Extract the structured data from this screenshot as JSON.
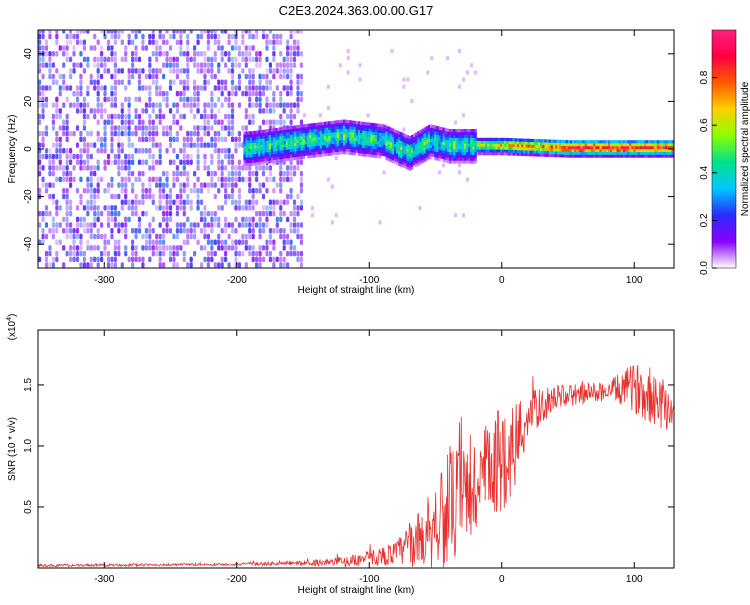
{
  "title": "C2E3.2024.363.00.00.G17",
  "chart_data": [
    {
      "type": "heatmap",
      "title": "C2E3.2024.363.00.00.G17",
      "xlabel": "Height of straight line (km)",
      "ylabel": "Frequency (Hz)",
      "xlim": [
        -350,
        130
      ],
      "ylim": [
        -50,
        50
      ],
      "x_ticks": [
        -300,
        -200,
        -100,
        0,
        100
      ],
      "y_ticks": [
        -40,
        -20,
        0,
        20,
        40
      ],
      "colorbar": {
        "label": "Normalized spectral amplitude",
        "range": [
          0,
          1
        ],
        "ticks": [
          0.0,
          0.2,
          0.4,
          0.6,
          0.8
        ],
        "tick_labels": [
          "0.0",
          "0.2",
          "0.4",
          "0.6",
          "0.8"
        ],
        "colors": [
          "#ffffff",
          "#8a00ff",
          "#2b2bff",
          "#00c8ff",
          "#00e08a",
          "#8aff00",
          "#ffd000",
          "#ff5a00",
          "#ff0040",
          "#ff2080"
        ]
      },
      "signal_ridge": [
        {
          "x": -190,
          "y": 0
        },
        {
          "x": -150,
          "y": 3
        },
        {
          "x": -120,
          "y": 5
        },
        {
          "x": -90,
          "y": 3
        },
        {
          "x": -70,
          "y": -2
        },
        {
          "x": -55,
          "y": 3
        },
        {
          "x": -40,
          "y": 1
        },
        {
          "x": -20,
          "y": 1
        },
        {
          "x": 0,
          "y": 1
        },
        {
          "x": 50,
          "y": 0
        },
        {
          "x": 130,
          "y": 0
        }
      ],
      "noise_region_x": [
        -350,
        -150
      ]
    },
    {
      "type": "line",
      "xlabel": "Height of straight line (km)",
      "ylabel": "SNR (10 * v/v)",
      "y_multiplier": "(x10",
      "y_multiplier_exp": "4",
      "y_multiplier_close": ")",
      "xlim": [
        -350,
        130
      ],
      "ylim": [
        0,
        1.95
      ],
      "x_ticks": [
        -300,
        -200,
        -100,
        0,
        100
      ],
      "y_ticks": [
        0.5,
        1.0,
        1.5
      ],
      "y_tick_labels": [
        "0.5",
        "1.0",
        "1.5"
      ],
      "series_color": "#e83030",
      "envelope": [
        {
          "x": -350,
          "base": 0.02,
          "spread": 0.01
        },
        {
          "x": -200,
          "base": 0.03,
          "spread": 0.01
        },
        {
          "x": -150,
          "base": 0.04,
          "spread": 0.02
        },
        {
          "x": -120,
          "base": 0.05,
          "spread": 0.04
        },
        {
          "x": -100,
          "base": 0.08,
          "spread": 0.06
        },
        {
          "x": -80,
          "base": 0.12,
          "spread": 0.1
        },
        {
          "x": -60,
          "base": 0.25,
          "spread": 0.25
        },
        {
          "x": -45,
          "base": 0.45,
          "spread": 0.45
        },
        {
          "x": -30,
          "base": 0.55,
          "spread": 0.5
        },
        {
          "x": -15,
          "base": 0.7,
          "spread": 0.45
        },
        {
          "x": 0,
          "base": 0.9,
          "spread": 0.45
        },
        {
          "x": 10,
          "base": 1.0,
          "spread": 0.4
        },
        {
          "x": 20,
          "base": 1.25,
          "spread": 0.2
        },
        {
          "x": 40,
          "base": 1.4,
          "spread": 0.1
        },
        {
          "x": 80,
          "base": 1.45,
          "spread": 0.08
        },
        {
          "x": 100,
          "base": 1.48,
          "spread": 0.2
        },
        {
          "x": 115,
          "base": 1.4,
          "spread": 0.25
        },
        {
          "x": 130,
          "base": 1.3,
          "spread": 0.2
        }
      ]
    }
  ]
}
